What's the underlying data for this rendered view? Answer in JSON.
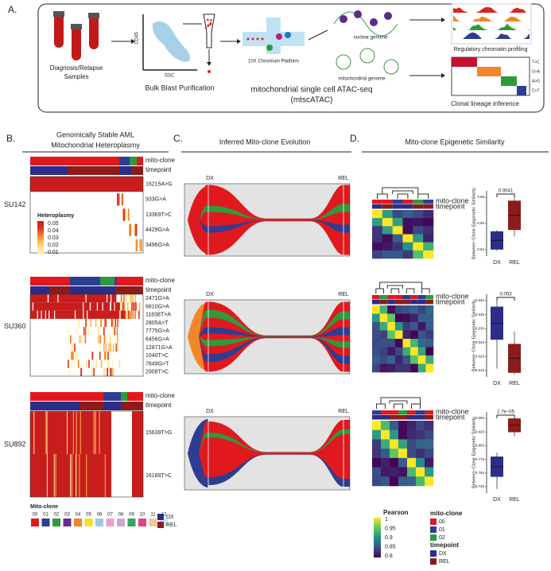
{
  "panel_a": {
    "label": "A.",
    "samples": [
      "Diagnosis/Relapse",
      "Samples"
    ],
    "flow_axes": {
      "y": "CD45",
      "x": "SSC"
    },
    "purification": "Bulk Blast Purification",
    "platform": "10X Chromium Platform",
    "nuclear": "nuclear genome",
    "mito": "mitochondrial genome",
    "assay": [
      "mitochondrial single cell ATAC-seq",
      "(mtscATAC)"
    ],
    "chromatin": "Regulatory chromatin profiling",
    "lineage": "Clonal lineage inference",
    "mutations": [
      "T>C",
      "G>A",
      "A>G",
      "C>T"
    ]
  },
  "panel_b": {
    "label": "B.",
    "title": [
      "Genomically Stable AML",
      "Mitochondrial Heteroplasmy"
    ],
    "track_labels": [
      "mito-clone",
      "timepoint"
    ],
    "samples": [
      {
        "name": "SU142",
        "variants": [
          "16215A>G",
          "933G>A",
          "13369T>C",
          "4429G>A",
          "3496G>A"
        ]
      },
      {
        "name": "SU360",
        "variants": [
          "2471G>A",
          "6810G>A",
          "11838T>A",
          "2805A>T",
          "7775G>A",
          "6456G>A",
          "12871G>A",
          "1040T>C",
          "7849G>T",
          "2908T>C"
        ]
      },
      {
        "name": "SU892",
        "variants": [
          "15639T>G",
          "16189T>C"
        ]
      }
    ],
    "heteroplasmy_legend": {
      "title": "Heteroplasmy",
      "ticks": [
        "0.05",
        "0.04",
        "0.03",
        "0.02",
        "0.01"
      ]
    },
    "clone_legend": {
      "title": "Mito-clone",
      "clones": [
        "00",
        "01",
        "02",
        "03",
        "04",
        "05",
        "06",
        "07",
        "08",
        "09",
        "10",
        "11",
        "12"
      ],
      "colors": [
        "#e0191f",
        "#2d3e92",
        "#2e9a3e",
        "#6a2c8a",
        "#f2862a",
        "#f0e02a",
        "#9ec7e6",
        "#e7a2c9",
        "#c9a7d8",
        "#3aa65a",
        "#e8408b",
        "#f4c49d",
        "#cfe6ef"
      ]
    },
    "timepoint_legend": {
      "items": [
        "DX",
        "REL"
      ],
      "colors": [
        "#2b2d88",
        "#8c1c1c"
      ]
    }
  },
  "panel_c": {
    "label": "C.",
    "title": "Inferred Mito-clone Evolution",
    "axis": [
      "DX",
      "REL"
    ]
  },
  "panel_d": {
    "label": "D.",
    "title": "Mito-clone Epigenetic Similarity",
    "track_labels": [
      "mito-clone",
      "timepoint"
    ],
    "y_label": "Between−Clone Epigenetic Similarity",
    "groups": [
      "DX",
      "REL"
    ],
    "samples": [
      {
        "pvalue": "0.0041",
        "yticks": [
          "0.88",
          "0.86",
          "0.84"
        ]
      },
      {
        "pvalue": "0.053",
        "yticks": [
          "0.640",
          "0.635",
          "0.630",
          "0.625",
          "0.620",
          "0.615"
        ]
      },
      {
        "pvalue": "2.7e−05",
        "yticks": [
          "0.850",
          "0.825",
          "0.800",
          "0.775",
          "0.750",
          "0.725"
        ]
      }
    ],
    "pearson_legend": {
      "title": "Pearson",
      "ticks": [
        "1",
        "0.95",
        "0.9",
        "0.85",
        "0.8"
      ]
    },
    "clone_legend": {
      "title": "mito-clone",
      "clones": [
        "00",
        "01",
        "02"
      ]
    },
    "timepoint_legend": {
      "title": "timepoint",
      "items": [
        "DX",
        "REL"
      ]
    }
  }
}
